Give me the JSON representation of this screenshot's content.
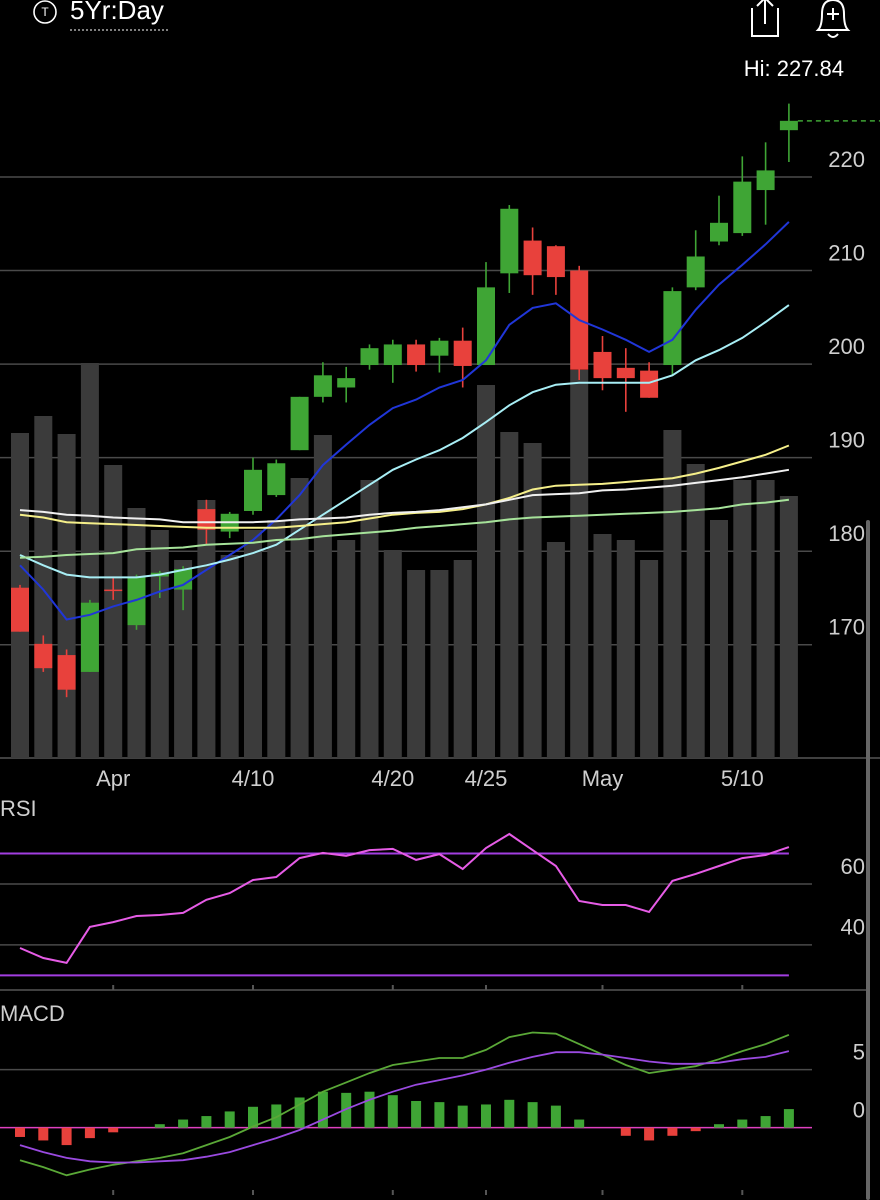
{
  "header": {
    "icon": "T",
    "range": "5Yr:Day",
    "high_label": "Hi: 227.84"
  },
  "chart_data": [
    {
      "type": "candlestick",
      "categories": [
        null,
        null,
        null,
        null,
        "Apr",
        null,
        null,
        null,
        null,
        null,
        "4/10",
        null,
        null,
        null,
        null,
        null,
        "4/20",
        null,
        null,
        null,
        "4/25",
        null,
        null,
        null,
        null,
        "May",
        null,
        null,
        null,
        null,
        null,
        "5/10",
        null,
        null
      ],
      "open": [
        176.1,
        170.1,
        168.9,
        167.1,
        175.9,
        172.1,
        177.3,
        175.9,
        184.5,
        182.1,
        184.3,
        186.0,
        190.8,
        196.5,
        197.5,
        199.9,
        199.9,
        202.1,
        200.9,
        202.5,
        199.9,
        209.7,
        213.2,
        212.6,
        210.0,
        201.3,
        199.6,
        199.3,
        199.9,
        208.2,
        213.1,
        214.0,
        218.6,
        225.0
      ],
      "high": [
        176.4,
        171.0,
        169.5,
        174.8,
        177.2,
        177.5,
        177.9,
        178.4,
        185.5,
        184.2,
        190.0,
        189.8,
        196.5,
        200.2,
        199.7,
        202.1,
        202.6,
        202.6,
        202.8,
        203.9,
        210.9,
        217.0,
        214.6,
        212.7,
        210.5,
        203.0,
        201.7,
        200.2,
        208.2,
        214.3,
        218.0,
        222.2,
        223.7,
        227.84
      ],
      "low": [
        171.4,
        167.1,
        164.4,
        167.1,
        174.8,
        171.6,
        175.0,
        173.7,
        180.7,
        181.4,
        183.9,
        185.8,
        190.8,
        195.9,
        195.9,
        199.4,
        198.0,
        199.2,
        199.1,
        197.5,
        199.9,
        207.6,
        207.4,
        207.4,
        198.3,
        197.2,
        194.9,
        196.4,
        198.8,
        207.9,
        212.7,
        213.7,
        214.9,
        221.6
      ],
      "close": [
        171.4,
        167.5,
        165.2,
        174.5,
        175.8,
        177.3,
        177.7,
        178.1,
        182.3,
        184.0,
        188.7,
        189.4,
        196.5,
        198.8,
        198.5,
        201.7,
        202.1,
        199.9,
        202.5,
        199.8,
        208.2,
        216.6,
        209.5,
        209.3,
        199.4,
        198.5,
        198.5,
        196.4,
        207.8,
        211.5,
        215.1,
        219.5,
        220.7,
        226.0
      ],
      "volume": [
        325,
        342,
        324,
        395,
        293,
        250,
        228,
        198,
        258,
        203,
        228,
        238,
        280,
        323,
        218,
        278,
        208,
        188,
        188,
        198,
        373,
        326,
        315,
        216,
        388,
        224,
        218,
        198,
        328,
        294,
        238,
        278,
        278,
        262
      ],
      "volume_ylim": [
        0,
        400
      ],
      "series": [
        {
          "color": "#2036d8",
          "values": [
            178.5,
            175.9,
            172.7,
            173.2,
            174.1,
            174.8,
            175.7,
            176.4,
            178.0,
            179.6,
            181.2,
            183.4,
            186.0,
            189.2,
            191.4,
            193.5,
            195.3,
            196.2,
            197.5,
            198.3,
            200.4,
            204.2,
            206.0,
            206.5,
            204.7,
            203.7,
            202.6,
            201.3,
            202.6,
            205.8,
            208.5,
            210.6,
            212.8,
            215.2
          ]
        },
        {
          "color": "#a8eef5",
          "values": [
            179.6,
            178.5,
            177.5,
            177.2,
            177.2,
            177.2,
            177.5,
            178.0,
            178.5,
            179.1,
            179.8,
            180.7,
            182.3,
            183.9,
            185.5,
            187.1,
            188.7,
            189.8,
            190.8,
            192.1,
            193.8,
            195.6,
            197.0,
            197.8,
            198.0,
            198.0,
            198.0,
            198.0,
            198.8,
            200.4,
            201.5,
            202.8,
            204.5,
            206.3
          ]
        },
        {
          "color": "#f5ef8a",
          "values": [
            183.9,
            183.6,
            183.1,
            183.0,
            182.9,
            182.8,
            182.7,
            182.6,
            182.5,
            182.5,
            182.5,
            182.5,
            182.7,
            182.9,
            183.1,
            183.5,
            183.9,
            184.1,
            184.2,
            184.5,
            185.0,
            185.7,
            186.6,
            187.0,
            187.1,
            187.2,
            187.4,
            187.6,
            187.8,
            188.3,
            188.9,
            189.6,
            190.3,
            191.3
          ]
        },
        {
          "color": "#f0f0f0",
          "values": [
            184.4,
            184.2,
            183.9,
            183.8,
            183.6,
            183.5,
            183.4,
            183.1,
            183.1,
            183.1,
            183.1,
            183.2,
            183.4,
            183.5,
            183.6,
            183.9,
            184.1,
            184.2,
            184.4,
            184.7,
            185.0,
            185.5,
            186.0,
            186.1,
            186.2,
            186.5,
            186.6,
            186.8,
            187.0,
            187.3,
            187.6,
            187.9,
            188.3,
            188.7
          ]
        },
        {
          "color": "#a6e39a",
          "values": [
            179.3,
            179.4,
            179.6,
            179.7,
            179.8,
            180.2,
            180.3,
            180.4,
            180.7,
            180.8,
            180.9,
            181.2,
            181.3,
            181.6,
            181.8,
            182.0,
            182.2,
            182.5,
            182.7,
            182.9,
            183.1,
            183.4,
            183.6,
            183.7,
            183.8,
            183.9,
            184.0,
            184.1,
            184.2,
            184.4,
            184.6,
            185.0,
            185.2,
            185.5
          ]
        }
      ],
      "up_color": "#3fa535",
      "down_color": "#e8413c",
      "volume_color": "#3b3b3b",
      "ylim": [
        157.9,
        232.5
      ],
      "yticks": [
        170,
        180,
        190,
        200,
        210,
        220
      ],
      "grid": true
    },
    {
      "type": "line",
      "title": "RSI",
      "values": [
        39.0,
        35.7,
        34.1,
        45.9,
        47.5,
        49.5,
        49.8,
        50.5,
        54.8,
        57.0,
        61.3,
        62.3,
        68.5,
        70.2,
        69.2,
        71.1,
        71.5,
        67.9,
        69.8,
        64.9,
        71.8,
        76.4,
        71.1,
        65.9,
        54.4,
        53.1,
        53.1,
        50.8,
        61.0,
        63.3,
        65.9,
        68.5,
        69.5,
        72.1
      ],
      "color": "#e65ce6",
      "reference_lines": [
        30,
        70
      ],
      "reference_color": "#a23ee0",
      "ylim": [
        25.2,
        89.2
      ],
      "yticks": [
        40,
        60
      ],
      "grid": true
    },
    {
      "type": "macd",
      "title": "MACD",
      "histogram": [
        -0.8,
        -1.1,
        -1.5,
        -0.9,
        -0.4,
        0.0,
        0.3,
        0.7,
        1.0,
        1.4,
        1.8,
        2.0,
        2.6,
        3.1,
        3.0,
        3.1,
        2.8,
        2.3,
        2.2,
        1.9,
        2.0,
        2.4,
        2.2,
        1.9,
        0.7,
        0.0,
        -0.7,
        -1.1,
        -0.7,
        -0.3,
        0.3,
        0.7,
        1.0,
        1.6
      ],
      "macd": [
        -2.8,
        -3.4,
        -4.1,
        -3.6,
        -3.2,
        -2.9,
        -2.6,
        -2.2,
        -1.5,
        -0.8,
        0.1,
        0.9,
        2.0,
        3.1,
        3.9,
        4.7,
        5.4,
        5.7,
        6.0,
        6.0,
        6.7,
        7.8,
        8.2,
        8.1,
        7.2,
        6.3,
        5.4,
        4.7,
        5.0,
        5.3,
        5.9,
        6.6,
        7.2,
        8.0
      ],
      "signal": [
        -1.5,
        -2.1,
        -2.6,
        -2.9,
        -3.0,
        -3.0,
        -2.9,
        -2.8,
        -2.5,
        -2.1,
        -1.5,
        -0.9,
        -0.2,
        0.7,
        1.6,
        2.4,
        3.1,
        3.7,
        4.1,
        4.5,
        5.0,
        5.6,
        6.1,
        6.5,
        6.5,
        6.3,
        6.0,
        5.7,
        5.5,
        5.5,
        5.6,
        5.9,
        6.1,
        6.6
      ],
      "macd_color": "#5aa837",
      "signal_color": "#9a4ae0",
      "up_color": "#3fa535",
      "down_color": "#e8413c",
      "zero_line_color": "#e040c0",
      "ylim": [
        -5.8,
        11.0
      ],
      "yticks": [
        0,
        5
      ],
      "grid": true
    }
  ]
}
